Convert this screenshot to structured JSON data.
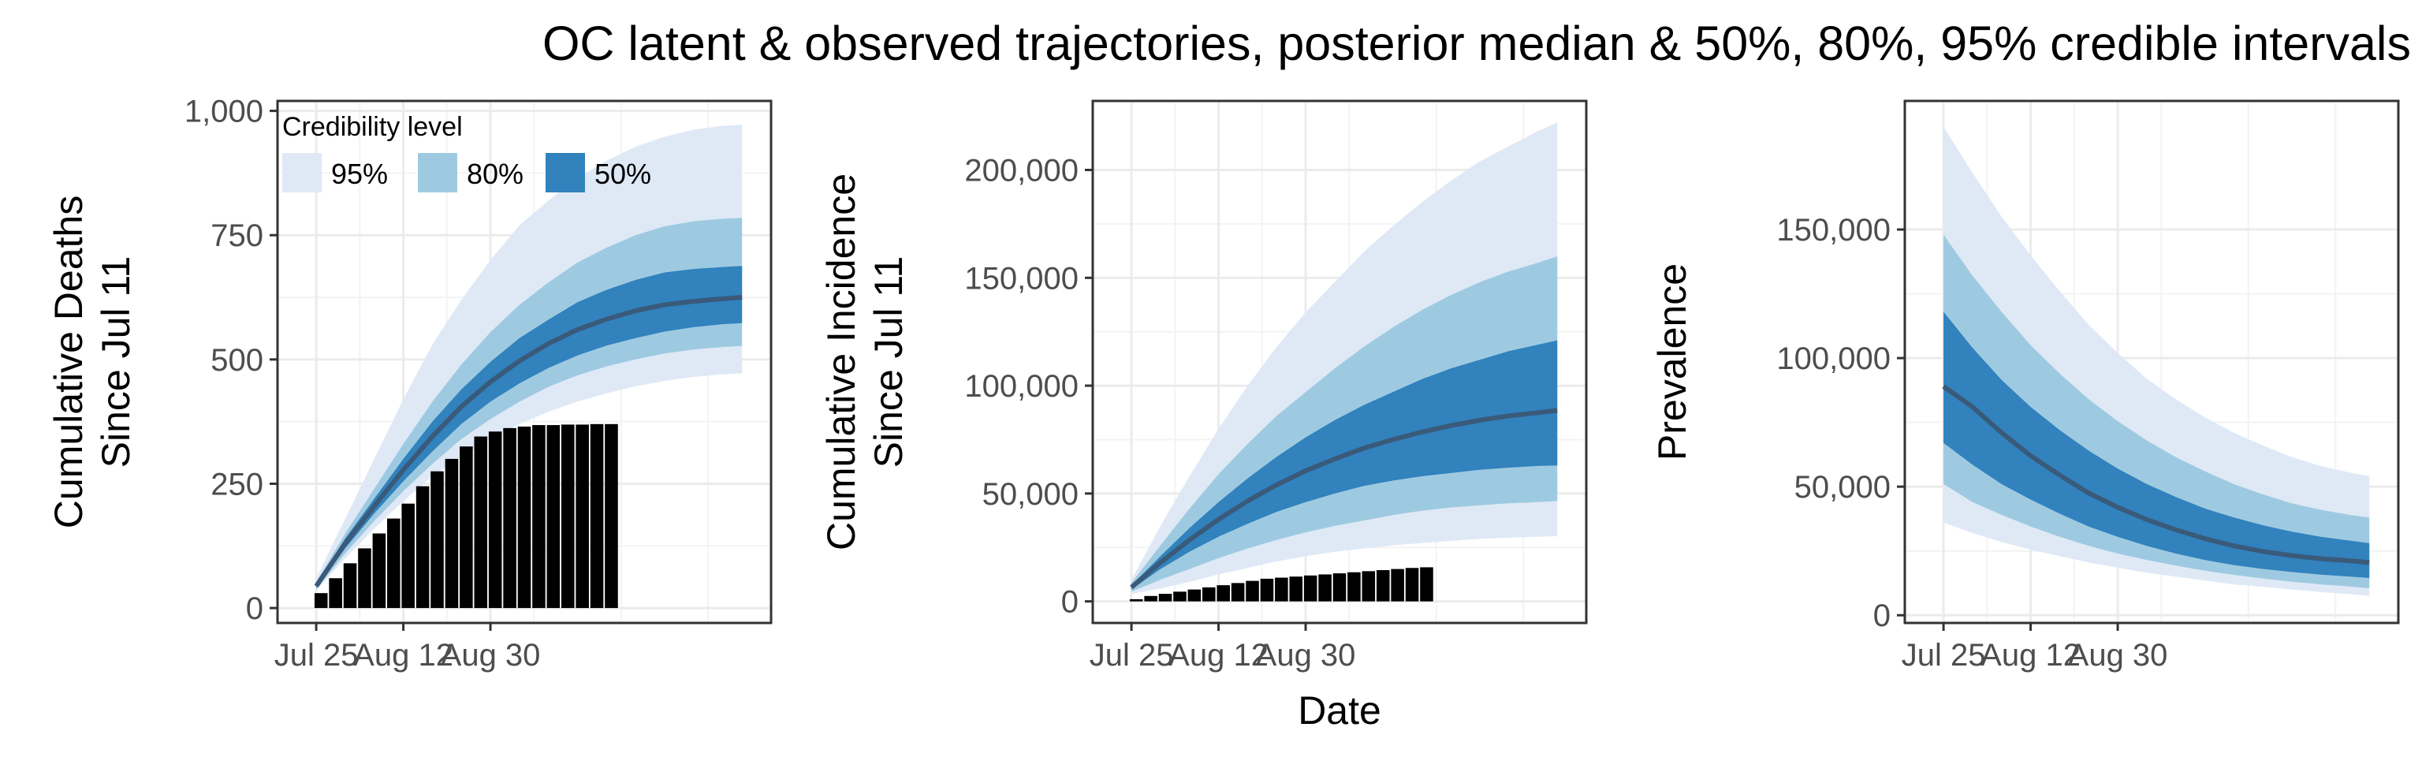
{
  "title": "OC latent & observed trajectories, posterior median & 50%, 80%, 95% credible intervals",
  "colors": {
    "band95": "#dfe9f6",
    "band80": "#9ecae1",
    "band50": "#3182bd",
    "median": "#3a5a7a",
    "bars": "#000000",
    "grid": "#ebebeb"
  },
  "legend": {
    "title": "Credibility level",
    "placement": "top-left (inside first panel)",
    "entries": [
      "95%",
      "80%",
      "50%"
    ]
  },
  "chart_data": [
    {
      "type": "area",
      "ylabel": "Cumulative Deaths\nSince Jul 11",
      "xlabel": "",
      "x_ticks": [
        "Jul 25",
        "Aug 12",
        "Aug 30"
      ],
      "ylim": [
        -30,
        1020
      ],
      "y_ticks": [
        0,
        250,
        500,
        750,
        1000
      ],
      "y_tick_labels": [
        "0",
        "250",
        "500",
        "750",
        "1,000"
      ],
      "x_days": [
        14,
        20,
        26,
        32,
        38,
        44,
        50,
        56,
        62,
        68,
        74,
        80,
        86,
        92,
        98,
        102
      ],
      "bands": {
        "lo95": [
          35,
          100,
          160,
          215,
          265,
          305,
          340,
          370,
          395,
          415,
          432,
          446,
          457,
          465,
          470,
          472
        ],
        "hi95": [
          60,
          180,
          300,
          420,
          530,
          620,
          700,
          770,
          820,
          865,
          900,
          928,
          948,
          962,
          970,
          972
        ],
        "lo80": [
          38,
          110,
          175,
          235,
          290,
          340,
          380,
          415,
          445,
          468,
          486,
          500,
          512,
          520,
          525,
          527
        ],
        "hi80": [
          52,
          150,
          240,
          330,
          415,
          490,
          555,
          610,
          655,
          695,
          725,
          750,
          768,
          778,
          783,
          785
        ],
        "lo50": [
          40,
          120,
          190,
          255,
          315,
          370,
          415,
          452,
          483,
          508,
          528,
          543,
          556,
          565,
          571,
          573
        ],
        "hi50": [
          48,
          140,
          220,
          300,
          375,
          440,
          495,
          543,
          580,
          615,
          640,
          660,
          675,
          682,
          686,
          688
        ],
        "median": [
          44,
          130,
          205,
          278,
          345,
          405,
          455,
          497,
          532,
          560,
          581,
          598,
          610,
          617,
          622,
          625
        ]
      },
      "bar_days": [
        15,
        18,
        21,
        24,
        27,
        30,
        33,
        36,
        39,
        42,
        45,
        48,
        51,
        54,
        57,
        60,
        63,
        66,
        69,
        72,
        75
      ],
      "bar_values": [
        30,
        60,
        90,
        120,
        150,
        180,
        210,
        245,
        275,
        300,
        325,
        345,
        355,
        362,
        365,
        368,
        368,
        369,
        369,
        370,
        370
      ]
    },
    {
      "type": "area",
      "ylabel": "Cumulative Incidence\nSince Jul 11",
      "xlabel": "Date",
      "x_ticks": [
        "Jul 25",
        "Aug 12",
        "Aug 30"
      ],
      "ylim": [
        -10000,
        232000
      ],
      "y_ticks": [
        0,
        50000,
        100000,
        150000,
        200000
      ],
      "y_tick_labels": [
        "0",
        "50,000",
        "100,000",
        "150,000",
        "200,000"
      ],
      "x_days": [
        14,
        20,
        26,
        32,
        38,
        44,
        50,
        56,
        62,
        68,
        74,
        80,
        86,
        92,
        98,
        102
      ],
      "bands": {
        "lo95": [
          3500,
          6000,
          9000,
          12500,
          15500,
          18500,
          21000,
          23000,
          24500,
          26000,
          27000,
          28000,
          29000,
          29500,
          30000,
          30200
        ],
        "hi95": [
          10000,
          35000,
          58000,
          80000,
          100000,
          118000,
          134000,
          148000,
          162000,
          174000,
          185000,
          195000,
          204000,
          211000,
          218000,
          222000
        ],
        "lo80": [
          4500,
          10000,
          15000,
          20000,
          24500,
          28500,
          32000,
          35000,
          37500,
          40000,
          42000,
          43500,
          44500,
          45500,
          46000,
          46500
        ],
        "hi80": [
          8500,
          26000,
          43000,
          59000,
          73000,
          86000,
          97000,
          108000,
          118000,
          127000,
          135000,
          142000,
          148000,
          153000,
          157000,
          160000
        ],
        "lo50": [
          5500,
          15000,
          23000,
          30000,
          36000,
          41500,
          46000,
          50000,
          53500,
          56000,
          58000,
          59500,
          61000,
          62000,
          62800,
          63000
        ],
        "hi50": [
          7500,
          21000,
          34000,
          46000,
          57000,
          67000,
          76000,
          84000,
          91000,
          97000,
          103000,
          108000,
          112000,
          116000,
          119000,
          121000
        ],
        "median": [
          6500,
          18000,
          28500,
          38000,
          46500,
          54000,
          60500,
          66000,
          71000,
          75000,
          78500,
          81500,
          84000,
          86000,
          87500,
          88500
        ]
      },
      "bar_days": [
        15,
        18,
        21,
        24,
        27,
        30,
        33,
        36,
        39,
        42,
        45,
        48,
        51,
        54,
        57,
        60,
        63,
        66,
        69,
        72,
        75
      ],
      "bar_values": [
        1000,
        2500,
        3500,
        4500,
        5500,
        6500,
        7500,
        8500,
        9500,
        10500,
        11000,
        11500,
        12000,
        12500,
        13000,
        13500,
        14000,
        14500,
        15000,
        15500,
        15800
      ]
    },
    {
      "type": "area",
      "ylabel": "Prevalence",
      "xlabel": "",
      "x_ticks": [
        "Jul 25",
        "Aug 12",
        "Aug 30"
      ],
      "ylim": [
        -3000,
        200000
      ],
      "y_ticks": [
        0,
        50000,
        100000,
        150000
      ],
      "y_tick_labels": [
        "0",
        "50,000",
        "100,000",
        "150,000"
      ],
      "x_days": [
        14,
        20,
        26,
        32,
        38,
        44,
        50,
        56,
        62,
        68,
        74,
        80,
        86,
        92,
        98,
        102
      ],
      "bands": {
        "lo95": [
          36000,
          32000,
          28500,
          25500,
          23000,
          20500,
          18500,
          16500,
          15000,
          13500,
          12000,
          11000,
          10000,
          9000,
          8200,
          7500
        ],
        "hi95": [
          190000,
          172000,
          155000,
          140000,
          126000,
          113000,
          102000,
          92000,
          84000,
          77000,
          71000,
          66000,
          61500,
          58000,
          55500,
          54000
        ],
        "lo80": [
          51000,
          44000,
          39000,
          34500,
          30500,
          27000,
          24000,
          21500,
          19300,
          17300,
          15700,
          14300,
          13000,
          12000,
          11200,
          10500
        ],
        "hi80": [
          148000,
          132000,
          118000,
          105000,
          94000,
          84000,
          75500,
          68000,
          61500,
          56000,
          51000,
          47000,
          43500,
          41000,
          39000,
          38000
        ],
        "lo50": [
          67000,
          58500,
          51000,
          45000,
          39500,
          34500,
          30500,
          27000,
          24000,
          21500,
          19500,
          18000,
          16800,
          15800,
          15000,
          14500
        ],
        "hi50": [
          118000,
          104000,
          91500,
          81000,
          72000,
          64000,
          57000,
          51000,
          46000,
          41500,
          38000,
          35000,
          32500,
          30500,
          29000,
          28000
        ],
        "median": [
          89000,
          81000,
          71000,
          62000,
          54500,
          47500,
          42000,
          37200,
          33200,
          29800,
          27000,
          24800,
          23200,
          22000,
          21200,
          20500
        ]
      }
    }
  ]
}
